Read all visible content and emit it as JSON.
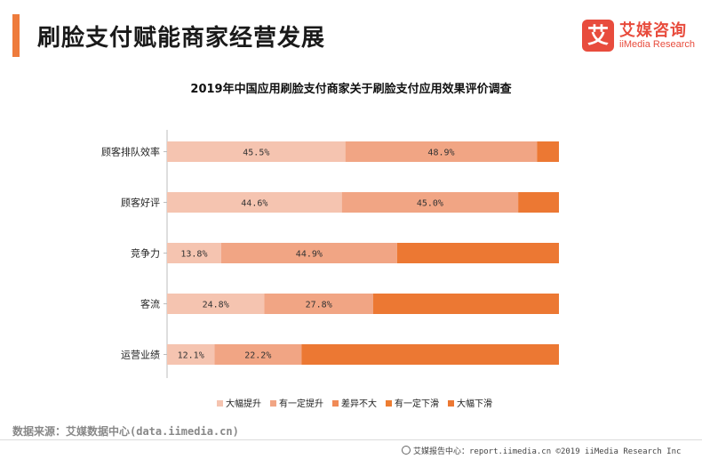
{
  "header": {
    "title": "刷脸支付赋能商家经营发展"
  },
  "logo": {
    "mark": "艾",
    "cn": "艾媒咨询",
    "en": "iiMedia Research"
  },
  "source": "数据来源：艾媒数据中心(data.iimedia.cn)",
  "footer": "艾媒报告中心：report.iimedia.cn  ©2019  iiMedia Research  Inc",
  "colors": {
    "accent": "#ee7b3c",
    "logo": "#e84c3d",
    "series": [
      "#f5c4b0",
      "#f1a584",
      "#f08a56",
      "#ed7d31",
      "#ec7833"
    ]
  },
  "chart_data": {
    "type": "bar",
    "orientation": "horizontal",
    "stacked": true,
    "title": "2019年中国应用刷脸支付商家关于刷脸支付应用效果评价调查",
    "categories": [
      "顾客排队效率",
      "顾客好评",
      "竞争力",
      "客流",
      "运营业绩"
    ],
    "series": [
      {
        "name": "大幅提升",
        "values": [
          45.5,
          44.6,
          13.8,
          24.8,
          12.1
        ]
      },
      {
        "name": "有一定提升",
        "values": [
          48.9,
          45.0,
          44.9,
          27.8,
          22.2
        ]
      },
      {
        "name": "差异不大",
        "values": [
          0,
          0,
          0,
          0,
          0
        ]
      },
      {
        "name": "有一定下滑",
        "values": [
          0,
          0,
          0,
          0,
          0
        ]
      },
      {
        "name": "大幅下滑",
        "values": [
          5.6,
          10.4,
          41.3,
          47.4,
          65.7
        ]
      }
    ],
    "value_labels": [
      [
        "45.5%",
        "48.9%"
      ],
      [
        "44.6%",
        "45.0%"
      ],
      [
        "13.8%",
        "44.9%"
      ],
      [
        "24.8%",
        "27.8%"
      ],
      [
        "12.1%",
        "22.2%"
      ]
    ],
    "xlim": [
      0,
      100
    ],
    "legend_position": "bottom",
    "grid": false
  }
}
